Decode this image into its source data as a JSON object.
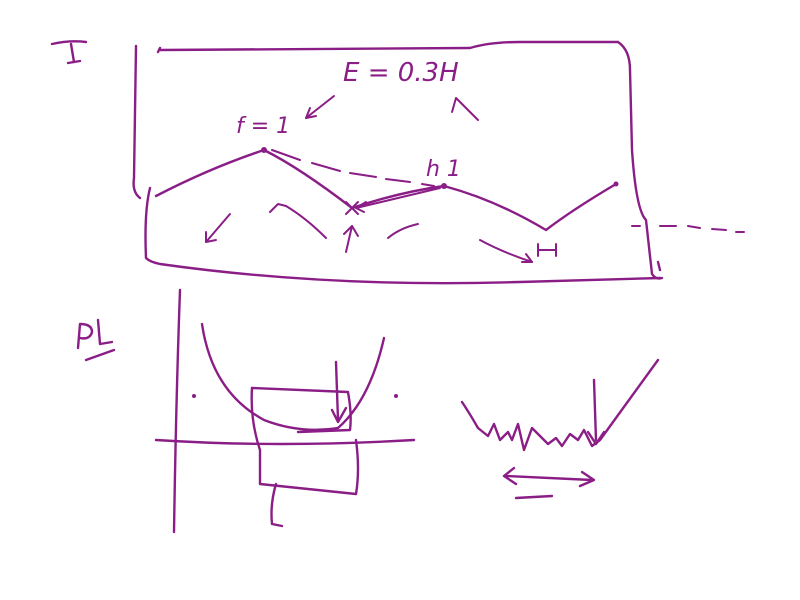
{
  "canvas": {
    "background": "#ffffff",
    "ink_color": "#8a1e86"
  },
  "section_markers": {
    "top": "I",
    "bottom": "PL"
  },
  "annotations": {
    "energy_label": "E = 0.3H",
    "f_label": "f = 1",
    "h_label": "h 1",
    "h_small_label": "H"
  }
}
